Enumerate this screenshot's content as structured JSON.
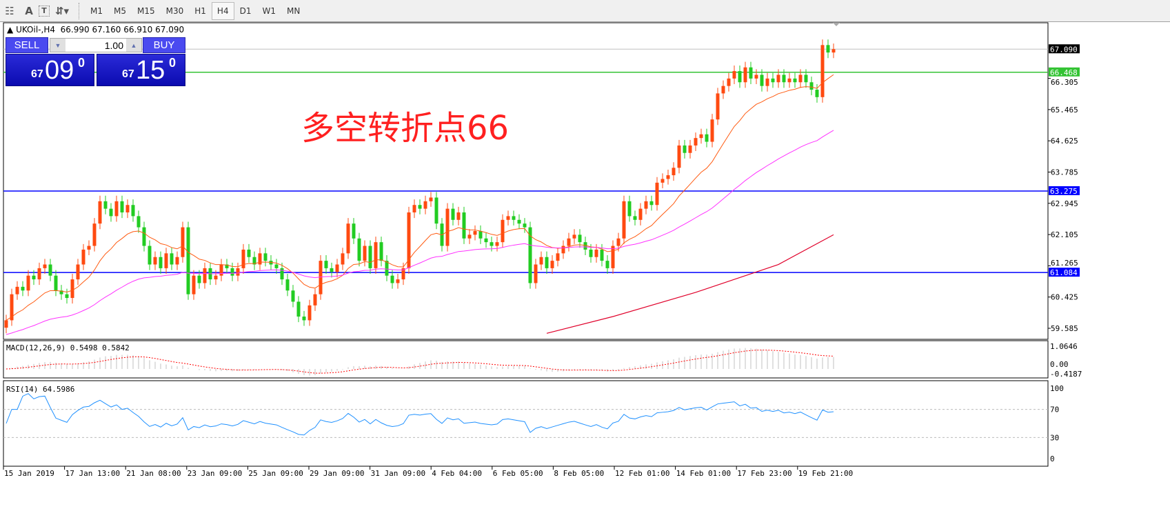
{
  "toolbar": {
    "tools": [
      {
        "icon": "fibonacci-grid-icon"
      },
      {
        "icon": "text-icon",
        "label": "A"
      },
      {
        "icon": "text-label-icon",
        "label": "T"
      },
      {
        "icon": "arrows-icon"
      }
    ],
    "timeframes": [
      "M1",
      "M5",
      "M15",
      "M30",
      "H1",
      "H4",
      "D1",
      "W1",
      "MN"
    ],
    "active_timeframe": "H4"
  },
  "header": {
    "symbol": "UKOil-,H4",
    "open": "66.990",
    "high": "67.160",
    "low": "66.910",
    "close": "67.090"
  },
  "trade_panel": {
    "sell_label": "SELL",
    "buy_label": "BUY",
    "lots": "1.00",
    "sell_big": "67",
    "sell_main": "09",
    "sell_sup": "0",
    "buy_big": "67",
    "buy_main": "15",
    "buy_sup": "0"
  },
  "annotation": "多空转折点66",
  "colors": {
    "bull": "#ff4a10",
    "bear": "#22cc22",
    "ma_fast": "#ff5a10",
    "ma_mid": "#ff30ff",
    "ma_slow": "#e0002a",
    "level_green": "#33c333",
    "level_blue": "#0000ff",
    "macd": "#c0c0c0",
    "signal": "#ff0000",
    "rsi": "#1e90ff"
  },
  "chart_data": {
    "type": "candlestick",
    "price_axis": {
      "ticks": [
        "66.305",
        "65.465",
        "64.625",
        "63.785",
        "62.945",
        "62.105",
        "61.265",
        "60.425",
        "59.585"
      ],
      "range": [
        59.2,
        67.7
      ]
    },
    "time_axis": [
      "15 Jan 2019",
      "17 Jan 13:00",
      "21 Jan 08:00",
      "23 Jan 09:00",
      "25 Jan 09:00",
      "29 Jan 09:00",
      "31 Jan 09:00",
      "4 Feb 04:00",
      "6 Feb 05:00",
      "8 Feb 05:00",
      "12 Feb 01:00",
      "14 Feb 01:00",
      "17 Feb 23:00",
      "19 Feb 21:00"
    ],
    "closes": [
      59.8,
      60.5,
      60.7,
      60.6,
      61.0,
      60.9,
      61.2,
      61.3,
      61.0,
      60.6,
      60.5,
      60.4,
      60.9,
      61.3,
      61.7,
      61.8,
      62.4,
      63.0,
      62.8,
      62.6,
      63.0,
      62.7,
      62.9,
      62.6,
      62.3,
      61.8,
      61.3,
      61.5,
      61.2,
      61.6,
      61.3,
      61.5,
      62.3,
      60.5,
      61.0,
      60.8,
      61.2,
      60.9,
      61.0,
      61.3,
      61.2,
      61.0,
      61.2,
      61.7,
      61.5,
      61.3,
      61.6,
      61.4,
      61.3,
      61.2,
      60.9,
      60.6,
      60.3,
      59.9,
      59.8,
      60.2,
      60.5,
      61.4,
      61.2,
      61.1,
      61.3,
      61.6,
      62.4,
      62.0,
      61.4,
      61.8,
      61.2,
      61.9,
      61.4,
      61.0,
      60.8,
      60.9,
      61.2,
      62.7,
      62.9,
      62.8,
      63.0,
      63.1,
      62.4,
      61.8,
      62.8,
      62.5,
      62.7,
      62.0,
      62.1,
      62.2,
      62.0,
      61.9,
      61.8,
      61.9,
      62.5,
      62.6,
      62.5,
      62.4,
      62.3,
      60.8,
      61.3,
      61.5,
      61.2,
      61.4,
      61.6,
      61.8,
      62.0,
      62.1,
      61.9,
      61.7,
      61.5,
      61.7,
      61.4,
      61.2,
      61.8,
      62.0,
      63.0,
      62.6,
      62.5,
      62.8,
      63.0,
      62.9,
      63.5,
      63.6,
      63.7,
      63.9,
      64.5,
      64.3,
      64.5,
      64.7,
      64.8,
      64.6,
      65.2,
      65.9,
      66.1,
      66.3,
      66.5,
      66.2,
      66.6,
      66.3,
      66.4,
      66.1,
      66.3,
      66.2,
      66.4,
      66.2,
      66.3,
      66.2,
      66.4,
      66.2,
      66.0,
      65.8,
      67.2,
      67.0,
      67.09
    ],
    "slow_ma_points": [
      [
        98,
        59.45
      ],
      [
        110,
        59.9
      ],
      [
        125,
        60.55
      ],
      [
        140,
        61.3
      ],
      [
        150,
        62.1
      ]
    ],
    "levels": [
      {
        "price": "67.090",
        "style": "bid",
        "color": "#000000"
      },
      {
        "price": "66.468",
        "color": "#33c333"
      },
      {
        "price": "63.275",
        "color": "#0000ff"
      },
      {
        "price": "61.084",
        "color": "#0000ff"
      }
    ],
    "macd": {
      "label": "MACD(12,26,9) 0.5498 0.5842",
      "ticks": [
        "1.0646",
        "0.00",
        "-0.4187"
      ],
      "range": [
        -0.4187,
        1.0646
      ]
    },
    "rsi": {
      "label": "RSI(14) 64.5986",
      "ticks": [
        "100",
        "70",
        "30",
        "0"
      ],
      "range": [
        0,
        100
      ],
      "levels": [
        70,
        30
      ]
    }
  }
}
